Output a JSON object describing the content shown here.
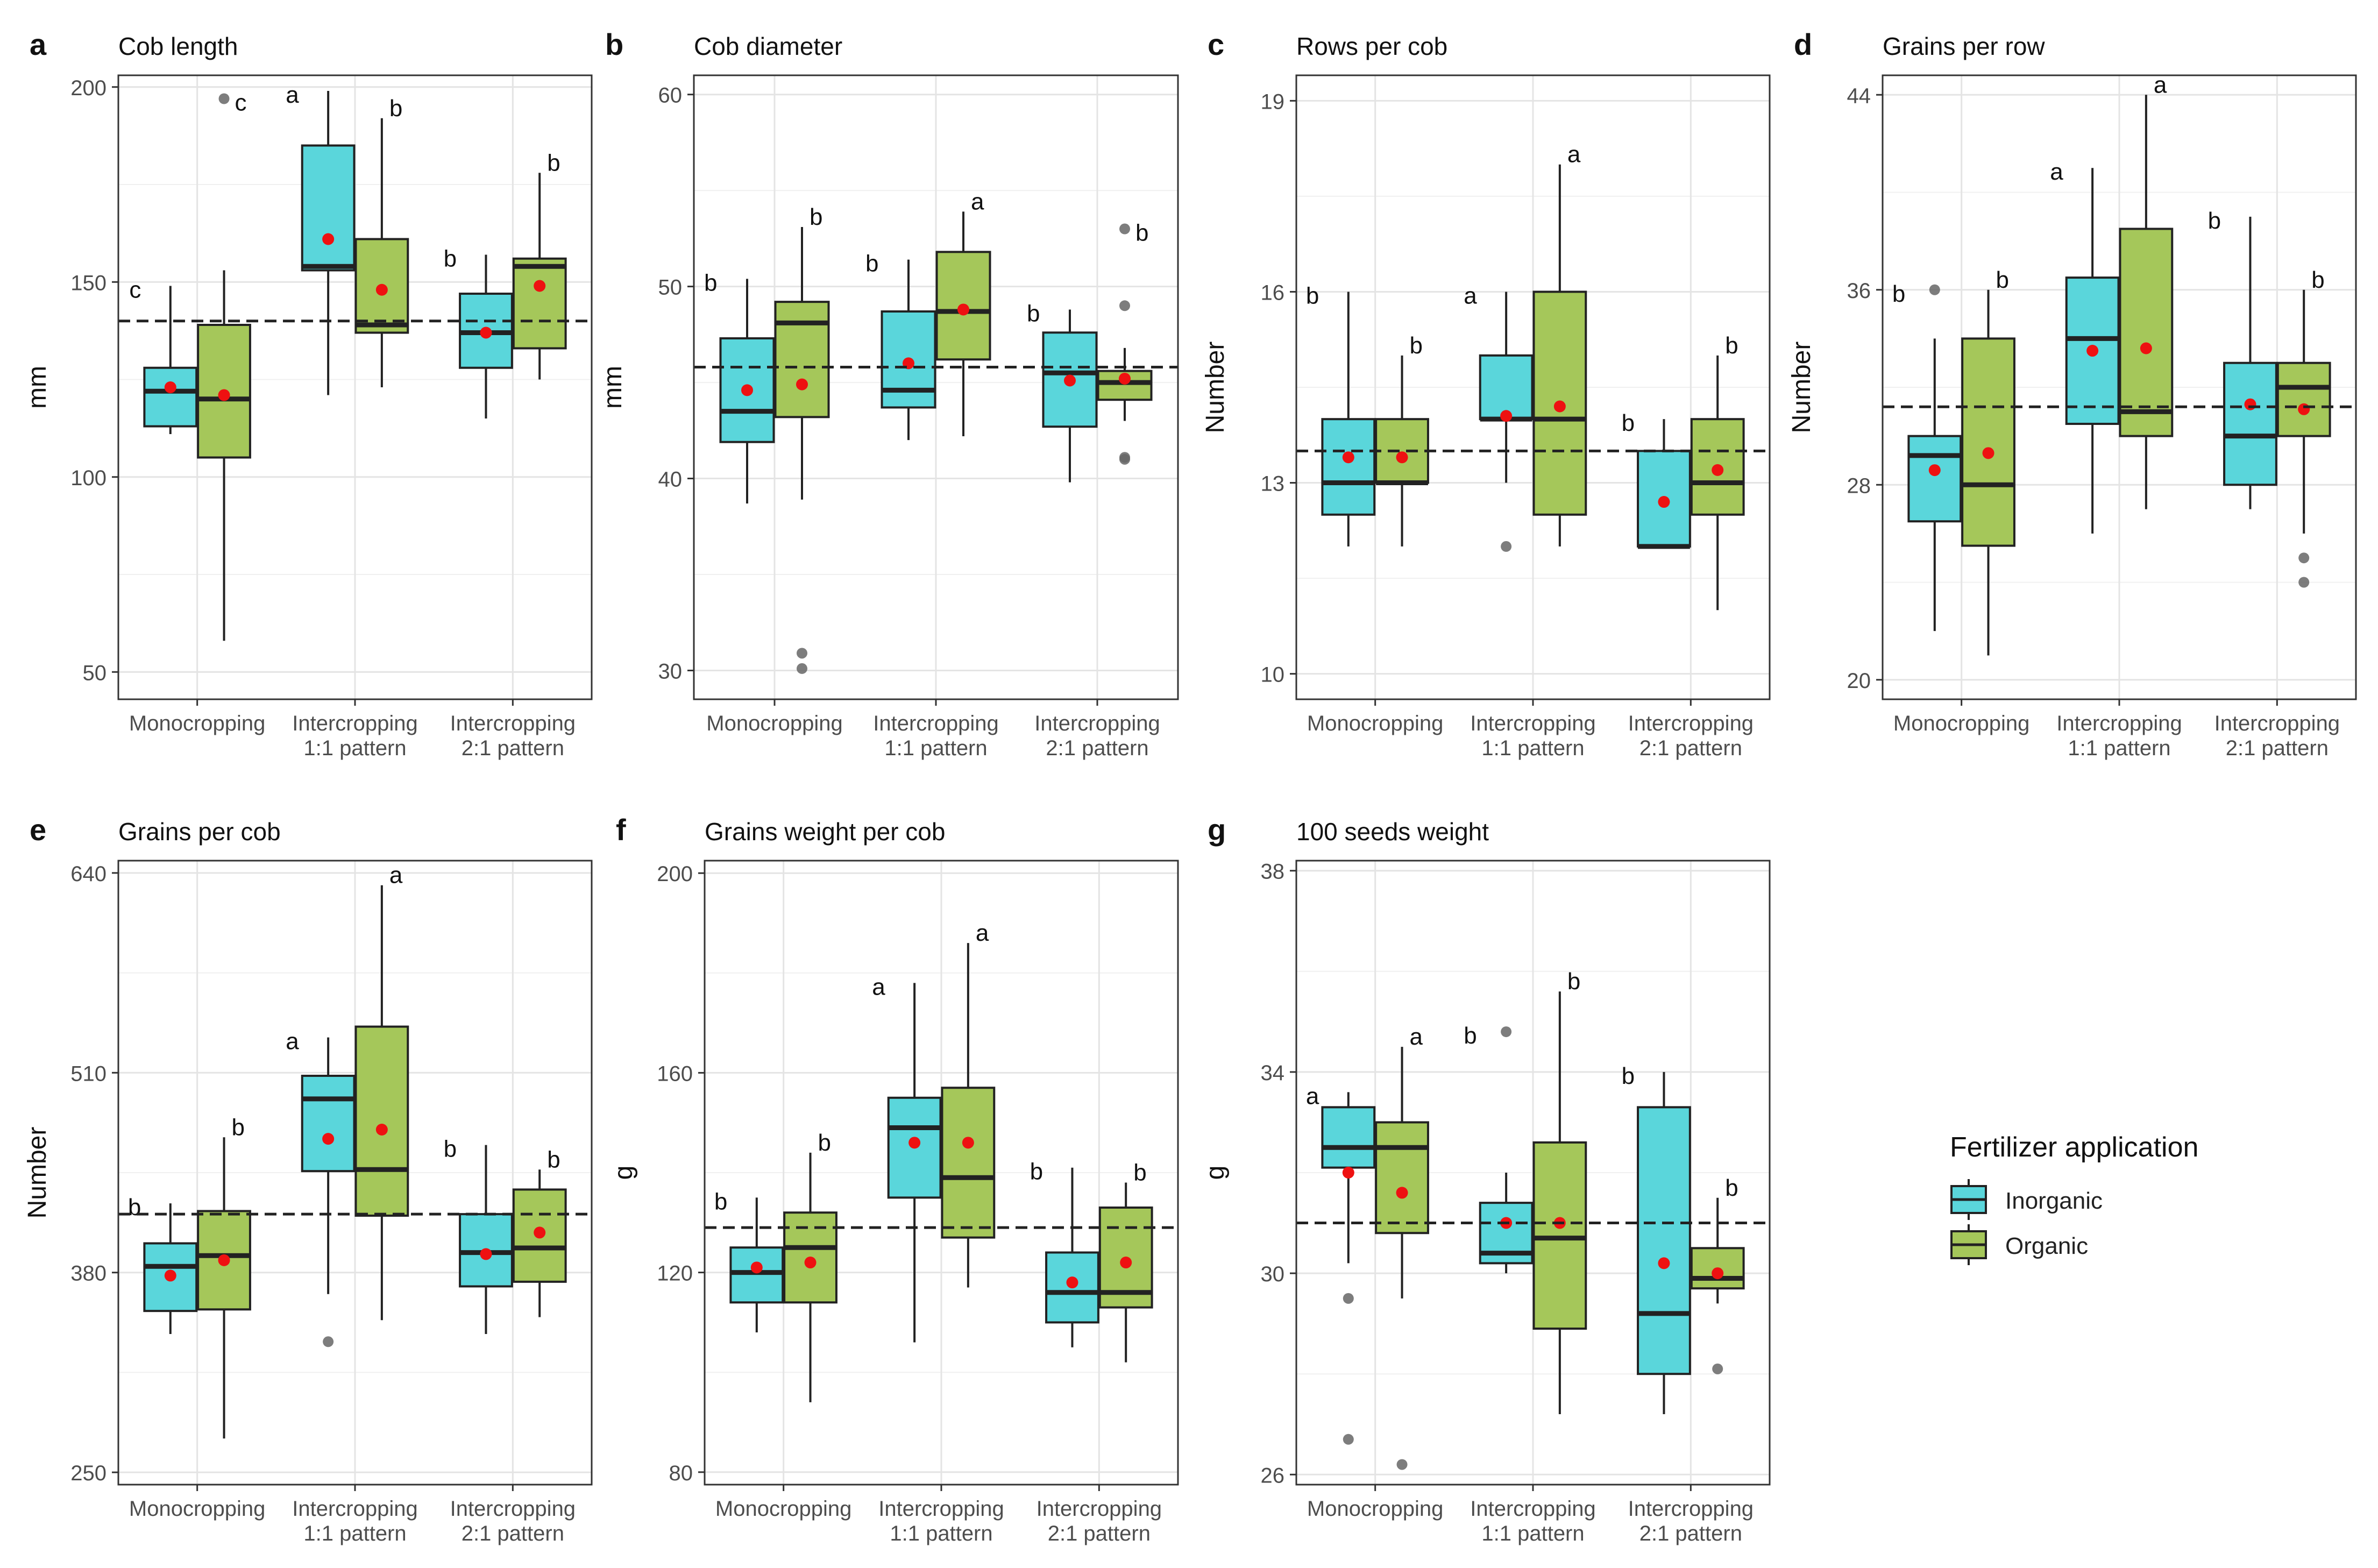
{
  "figure": {
    "x_categories": [
      "Monocropping",
      "Intercropping 1:1 pattern",
      "Intercropping 2:1 pattern"
    ],
    "x_category_lines": [
      [
        "Monocropping"
      ],
      [
        "Intercropping",
        "1:1 pattern"
      ],
      [
        "Intercropping",
        "2:1 pattern"
      ]
    ],
    "treatments": [
      "Inorganic",
      "Organic"
    ],
    "colors": {
      "Inorganic": "#5ad6db",
      "Organic": "#a5c75a",
      "mean": "#ee1111",
      "outlier": "#666666",
      "reference": "#222222"
    },
    "legend": {
      "title": "Fertilizer application",
      "items": [
        "Inorganic",
        "Organic"
      ]
    }
  },
  "chart_data": [
    {
      "type": "box",
      "letter": "a",
      "title": "Cob length",
      "ylabel": "mm",
      "ylim": [
        43,
        203
      ],
      "ticks": [
        50,
        100,
        150,
        200
      ],
      "reference_line": 140,
      "boxes": [
        {
          "group": 0,
          "treatment": "Inorganic",
          "q1": 113,
          "median": 122,
          "q3": 128,
          "whisker_low": 111,
          "whisker_high": 149,
          "mean": 123,
          "outliers": [],
          "sig": "c",
          "sig_y": 149
        },
        {
          "group": 0,
          "treatment": "Organic",
          "q1": 105,
          "median": 120,
          "q3": 139,
          "whisker_low": 58,
          "whisker_high": 153,
          "mean": 121,
          "outliers": [
            197
          ],
          "sig": "c",
          "sig_y": 197
        },
        {
          "group": 1,
          "treatment": "Inorganic",
          "q1": 153,
          "median": 154,
          "q3": 185,
          "whisker_low": 121,
          "whisker_high": 199,
          "mean": 161,
          "outliers": [],
          "sig": "a",
          "sig_y": 199
        },
        {
          "group": 1,
          "treatment": "Organic",
          "q1": 137,
          "median": 139,
          "q3": 161,
          "whisker_low": 123,
          "whisker_high": 192,
          "mean": 148,
          "outliers": [],
          "sig": "b",
          "sig_y": 192
        },
        {
          "group": 2,
          "treatment": "Inorganic",
          "q1": 128,
          "median": 137,
          "q3": 147,
          "whisker_low": 115,
          "whisker_high": 157,
          "mean": 137,
          "outliers": [],
          "sig": "b",
          "sig_y": 157
        },
        {
          "group": 2,
          "treatment": "Organic",
          "q1": 133,
          "median": 154,
          "q3": 156,
          "whisker_low": 125,
          "whisker_high": 178,
          "mean": 149,
          "outliers": [],
          "sig": "b",
          "sig_y": 178
        }
      ]
    },
    {
      "type": "box",
      "letter": "b",
      "title": "Cob diameter",
      "ylabel": "mm",
      "ylim": [
        28.5,
        61
      ],
      "ticks": [
        30,
        40,
        50,
        60
      ],
      "reference_line": 45.8,
      "boxes": [
        {
          "group": 0,
          "treatment": "Inorganic",
          "q1": 41.9,
          "median": 43.5,
          "q3": 47.3,
          "whisker_low": 38.7,
          "whisker_high": 50.4,
          "mean": 44.6,
          "outliers": [],
          "sig": "b",
          "sig_y": 50.4
        },
        {
          "group": 0,
          "treatment": "Organic",
          "q1": 43.2,
          "median": 48.1,
          "q3": 49.2,
          "whisker_low": 38.9,
          "whisker_high": 53.1,
          "mean": 44.9,
          "outliers": [
            30.1,
            30.9
          ],
          "sig": "b",
          "sig_y": 53.1
        },
        {
          "group": 1,
          "treatment": "Inorganic",
          "q1": 43.7,
          "median": 44.6,
          "q3": 48.7,
          "whisker_low": 42.0,
          "whisker_high": 51.4,
          "mean": 46.0,
          "outliers": [],
          "sig": "b",
          "sig_y": 51.4
        },
        {
          "group": 1,
          "treatment": "Organic",
          "q1": 46.2,
          "median": 48.7,
          "q3": 51.8,
          "whisker_low": 42.2,
          "whisker_high": 53.9,
          "mean": 48.8,
          "outliers": [],
          "sig": "a",
          "sig_y": 53.9
        },
        {
          "group": 2,
          "treatment": "Inorganic",
          "q1": 42.7,
          "median": 45.5,
          "q3": 47.6,
          "whisker_low": 39.8,
          "whisker_high": 48.8,
          "mean": 45.1,
          "outliers": [],
          "sig": "b",
          "sig_y": 48.8
        },
        {
          "group": 2,
          "treatment": "Organic",
          "q1": 44.1,
          "median": 45.0,
          "q3": 45.6,
          "whisker_low": 43.0,
          "whisker_high": 46.8,
          "mean": 45.2,
          "outliers": [
            41.0,
            41.1,
            49.0,
            53.0
          ],
          "sig": "b",
          "sig_y": 53.0
        }
      ]
    },
    {
      "type": "box",
      "letter": "c",
      "title": "Rows per cob",
      "ylabel": "Number",
      "ylim": [
        9.6,
        19.4
      ],
      "ticks": [
        10,
        13,
        16,
        19
      ],
      "reference_line": 13.5,
      "boxes": [
        {
          "group": 0,
          "treatment": "Inorganic",
          "q1": 12.5,
          "median": 13,
          "q3": 14,
          "whisker_low": 12,
          "whisker_high": 16,
          "mean": 13.4,
          "outliers": [],
          "sig": "b",
          "sig_y": 16
        },
        {
          "group": 0,
          "treatment": "Organic",
          "q1": 13,
          "median": 13,
          "q3": 14,
          "whisker_low": 12,
          "whisker_high": 15,
          "mean": 13.4,
          "outliers": [],
          "sig": "b",
          "sig_y": 15
        },
        {
          "group": 1,
          "treatment": "Inorganic",
          "q1": 14,
          "median": 14,
          "q3": 15,
          "whisker_low": 13,
          "whisker_high": 16,
          "mean": 14.05,
          "outliers": [
            12
          ],
          "sig": "a",
          "sig_y": 16
        },
        {
          "group": 1,
          "treatment": "Organic",
          "q1": 12.5,
          "median": 14,
          "q3": 16,
          "whisker_low": 12,
          "whisker_high": 18,
          "mean": 14.2,
          "outliers": [],
          "sig": "a",
          "sig_y": 18
        },
        {
          "group": 2,
          "treatment": "Inorganic",
          "q1": 12,
          "median": 12,
          "q3": 13.5,
          "whisker_low": 12,
          "whisker_high": 14,
          "mean": 12.7,
          "outliers": [],
          "sig": "b",
          "sig_y": 14
        },
        {
          "group": 2,
          "treatment": "Organic",
          "q1": 12.5,
          "median": 13,
          "q3": 14,
          "whisker_low": 11,
          "whisker_high": 15,
          "mean": 13.2,
          "outliers": [],
          "sig": "b",
          "sig_y": 15
        }
      ]
    },
    {
      "type": "box",
      "letter": "d",
      "title": "Grains per row",
      "ylabel": "Number",
      "ylim": [
        19.2,
        44.8
      ],
      "ticks": [
        20,
        28,
        36,
        44
      ],
      "reference_line": 31.2,
      "boxes": [
        {
          "group": 0,
          "treatment": "Inorganic",
          "q1": 26.5,
          "median": 29.2,
          "q3": 30.0,
          "whisker_low": 22,
          "whisker_high": 34,
          "mean": 28.6,
          "outliers": [
            36
          ],
          "sig": "b",
          "sig_y": 36
        },
        {
          "group": 0,
          "treatment": "Organic",
          "q1": 25.5,
          "median": 28.0,
          "q3": 34.0,
          "whisker_low": 21,
          "whisker_high": 36,
          "mean": 29.3,
          "outliers": [],
          "sig": "b",
          "sig_y": 36
        },
        {
          "group": 1,
          "treatment": "Inorganic",
          "q1": 30.5,
          "median": 34.0,
          "q3": 36.5,
          "whisker_low": 26,
          "whisker_high": 41,
          "mean": 33.5,
          "outliers": [],
          "sig": "a",
          "sig_y": 41
        },
        {
          "group": 1,
          "treatment": "Organic",
          "q1": 30.0,
          "median": 31.0,
          "q3": 38.5,
          "whisker_low": 27,
          "whisker_high": 44,
          "mean": 33.6,
          "outliers": [],
          "sig": "a",
          "sig_y": 44
        },
        {
          "group": 2,
          "treatment": "Inorganic",
          "q1": 28.0,
          "median": 30.0,
          "q3": 33.0,
          "whisker_low": 27,
          "whisker_high": 39,
          "mean": 31.3,
          "outliers": [],
          "sig": "b",
          "sig_y": 39
        },
        {
          "group": 2,
          "treatment": "Organic",
          "q1": 30.0,
          "median": 32.0,
          "q3": 33.0,
          "whisker_low": 26,
          "whisker_high": 36,
          "mean": 31.1,
          "outliers": [
            24,
            25
          ],
          "sig": "b",
          "sig_y": 36
        }
      ]
    },
    {
      "type": "box",
      "letter": "e",
      "title": "Grains per cob",
      "ylabel": "Number",
      "ylim": [
        242,
        648
      ],
      "ticks": [
        250,
        380,
        510,
        640
      ],
      "reference_line": 418,
      "boxes": [
        {
          "group": 0,
          "treatment": "Inorganic",
          "q1": 355,
          "median": 384,
          "q3": 399,
          "whisker_low": 340,
          "whisker_high": 425,
          "mean": 378,
          "outliers": [],
          "sig": "b",
          "sig_y": 425
        },
        {
          "group": 0,
          "treatment": "Organic",
          "q1": 356,
          "median": 391,
          "q3": 420,
          "whisker_low": 272,
          "whisker_high": 468,
          "mean": 388,
          "outliers": [],
          "sig": "b",
          "sig_y": 468
        },
        {
          "group": 1,
          "treatment": "Inorganic",
          "q1": 446,
          "median": 493,
          "q3": 508,
          "whisker_low": 366,
          "whisker_high": 533,
          "mean": 467,
          "outliers": [
            335
          ],
          "sig": "a",
          "sig_y": 533
        },
        {
          "group": 1,
          "treatment": "Organic",
          "q1": 417,
          "median": 447,
          "q3": 540,
          "whisker_low": 349,
          "whisker_high": 632,
          "mean": 473,
          "outliers": [],
          "sig": "a",
          "sig_y": 632
        },
        {
          "group": 2,
          "treatment": "Inorganic",
          "q1": 371,
          "median": 393,
          "q3": 418,
          "whisker_low": 340,
          "whisker_high": 463,
          "mean": 392,
          "outliers": [],
          "sig": "b",
          "sig_y": 463
        },
        {
          "group": 2,
          "treatment": "Organic",
          "q1": 374,
          "median": 396,
          "q3": 434,
          "whisker_low": 351,
          "whisker_high": 447,
          "mean": 406,
          "outliers": [],
          "sig": "b",
          "sig_y": 447
        }
      ]
    },
    {
      "type": "box",
      "letter": "f",
      "title": "Grains weight per cob",
      "ylabel": "g",
      "ylim": [
        77.5,
        202.5
      ],
      "ticks": [
        80,
        120,
        160,
        200
      ],
      "reference_line": 129,
      "boxes": [
        {
          "group": 0,
          "treatment": "Inorganic",
          "q1": 114,
          "median": 120,
          "q3": 125,
          "whisker_low": 108,
          "whisker_high": 135,
          "mean": 121,
          "outliers": [],
          "sig": "b",
          "sig_y": 135
        },
        {
          "group": 0,
          "treatment": "Organic",
          "q1": 114,
          "median": 125,
          "q3": 132,
          "whisker_low": 94,
          "whisker_high": 144,
          "mean": 122,
          "outliers": [],
          "sig": "b",
          "sig_y": 144
        },
        {
          "group": 1,
          "treatment": "Inorganic",
          "q1": 135,
          "median": 149,
          "q3": 155,
          "whisker_low": 106,
          "whisker_high": 178,
          "mean": 146,
          "outliers": [],
          "sig": "a",
          "sig_y": 178
        },
        {
          "group": 1,
          "treatment": "Organic",
          "q1": 127,
          "median": 139,
          "q3": 157,
          "whisker_low": 117,
          "whisker_high": 186,
          "mean": 146,
          "outliers": [],
          "sig": "a",
          "sig_y": 186
        },
        {
          "group": 2,
          "treatment": "Inorganic",
          "q1": 110,
          "median": 116,
          "q3": 124,
          "whisker_low": 105,
          "whisker_high": 141,
          "mean": 118,
          "outliers": [],
          "sig": "b",
          "sig_y": 141
        },
        {
          "group": 2,
          "treatment": "Organic",
          "q1": 113,
          "median": 116,
          "q3": 133,
          "whisker_low": 102,
          "whisker_high": 138,
          "mean": 122,
          "outliers": [],
          "sig": "b",
          "sig_y": 138
        }
      ]
    },
    {
      "type": "box",
      "letter": "g",
      "title": "100 seeds weight",
      "ylabel": "g",
      "ylim": [
        25.8,
        38.2
      ],
      "ticks": [
        26,
        30,
        34,
        38
      ],
      "reference_line": 31.0,
      "boxes": [
        {
          "group": 0,
          "treatment": "Inorganic",
          "q1": 32.1,
          "median": 32.5,
          "q3": 33.3,
          "whisker_low": 30.2,
          "whisker_high": 33.6,
          "mean": 32.0,
          "outliers": [
            29.5,
            26.7
          ],
          "sig": "a",
          "sig_y": 33.6
        },
        {
          "group": 0,
          "treatment": "Organic",
          "q1": 30.8,
          "median": 32.5,
          "q3": 33.0,
          "whisker_low": 29.5,
          "whisker_high": 34.5,
          "mean": 31.6,
          "outliers": [
            26.2
          ],
          "sig": "a",
          "sig_y": 34.5
        },
        {
          "group": 1,
          "treatment": "Inorganic",
          "q1": 30.2,
          "median": 30.4,
          "q3": 31.4,
          "whisker_low": 30.0,
          "whisker_high": 32.0,
          "mean": 31.0,
          "outliers": [
            34.8
          ],
          "sig": "b",
          "sig_y": 34.8
        },
        {
          "group": 1,
          "treatment": "Organic",
          "q1": 28.9,
          "median": 30.7,
          "q3": 32.6,
          "whisker_low": 27.2,
          "whisker_high": 35.6,
          "mean": 31.0,
          "outliers": [],
          "sig": "b",
          "sig_y": 35.6
        },
        {
          "group": 2,
          "treatment": "Inorganic",
          "q1": 28.0,
          "median": 29.2,
          "q3": 33.3,
          "whisker_low": 27.2,
          "whisker_high": 34.0,
          "mean": 30.2,
          "outliers": [],
          "sig": "b",
          "sig_y": 34.0
        },
        {
          "group": 2,
          "treatment": "Organic",
          "q1": 29.7,
          "median": 29.9,
          "q3": 30.5,
          "whisker_low": 29.4,
          "whisker_high": 31.5,
          "mean": 30.0,
          "outliers": [
            28.1
          ],
          "sig": "b",
          "sig_y": 31.5
        }
      ]
    }
  ]
}
